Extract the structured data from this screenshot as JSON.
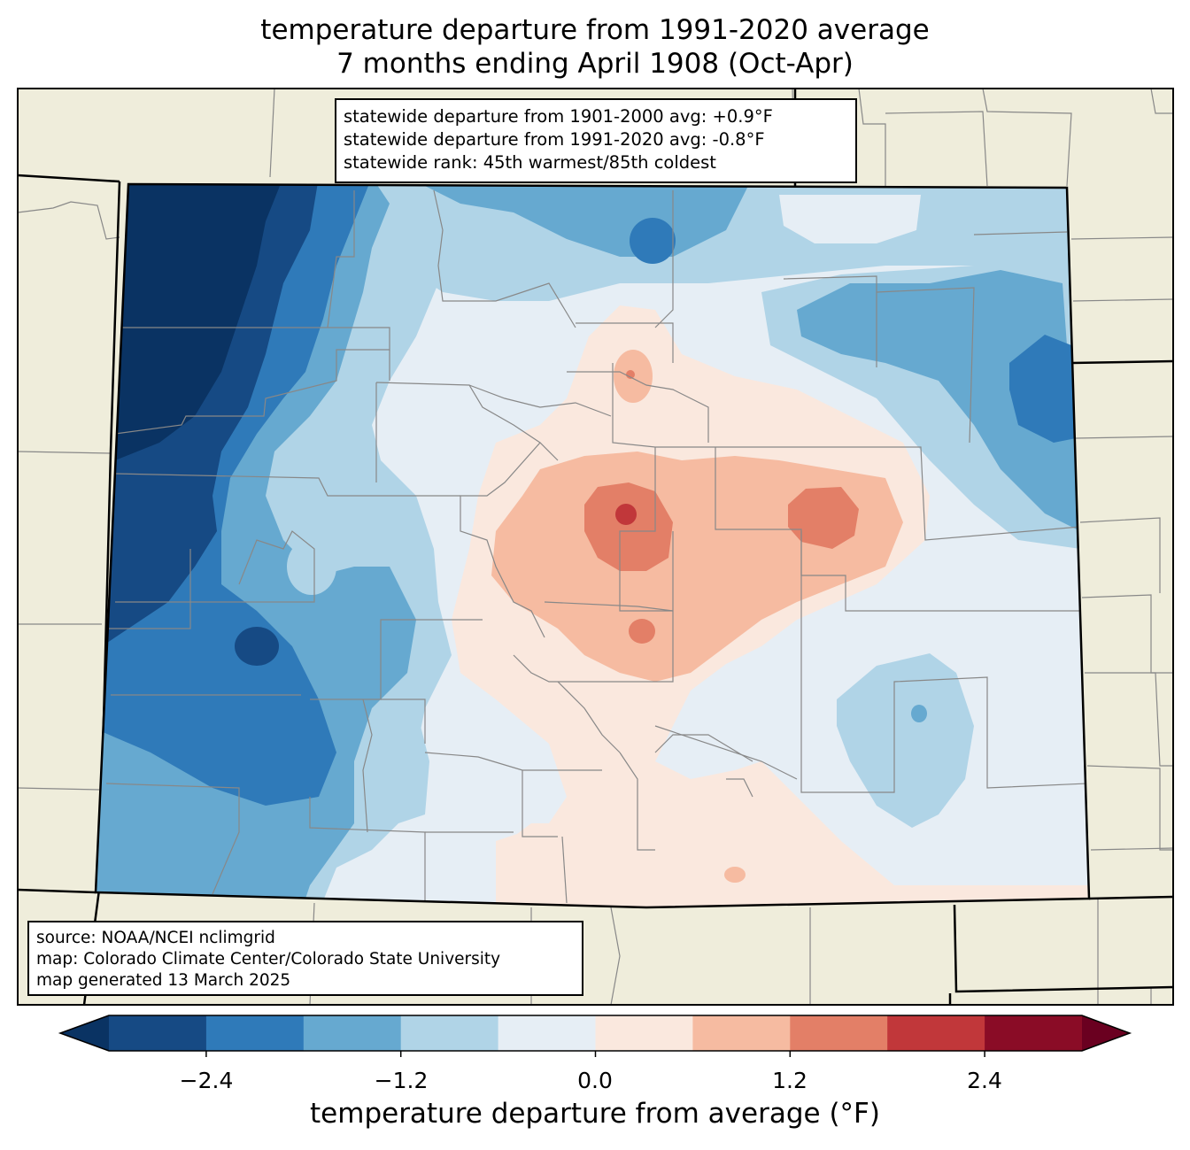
{
  "title": {
    "line1": "temperature departure from 1991-2020 average",
    "line2": "7 months ending April 1908 (Oct-Apr)"
  },
  "stats": {
    "line1": "statewide departure from 1901-2000 avg: +0.9°F",
    "line2": "statewide departure from 1991-2020 avg: -0.8°F",
    "line3": "statewide rank: 45th warmest/85th coldest"
  },
  "source": {
    "line1": "source: NOAA/NCEI nclimgrid",
    "line2": "map: Colorado Climate Center/Colorado State University",
    "line3": "map generated 13 March 2025"
  },
  "colorbar": {
    "label": "temperature departure from average (°F)",
    "ticks": [
      "−2.4",
      "−1.2",
      "0.0",
      "1.2",
      "2.4"
    ],
    "bins": [
      {
        "from": -3.0,
        "to": -2.4,
        "color": "#164a84"
      },
      {
        "from": -2.4,
        "to": -1.8,
        "color": "#2f7ab9"
      },
      {
        "from": -1.8,
        "to": -1.2,
        "color": "#66a9d0"
      },
      {
        "from": -1.2,
        "to": -0.6,
        "color": "#b0d4e7"
      },
      {
        "from": -0.6,
        "to": 0.0,
        "color": "#e6eef5"
      },
      {
        "from": 0.0,
        "to": 0.6,
        "color": "#fae8de"
      },
      {
        "from": 0.6,
        "to": 1.2,
        "color": "#f6bba1"
      },
      {
        "from": 1.2,
        "to": 1.8,
        "color": "#e37f67"
      },
      {
        "from": 1.8,
        "to": 2.4,
        "color": "#c1373a"
      },
      {
        "from": 2.4,
        "to": 3.0,
        "color": "#8a0c26"
      }
    ],
    "under_color": "#0a3363",
    "over_color": "#6a0020"
  },
  "colors": {
    "land": "#efeddb",
    "county_line": "#888888",
    "state_line": "#000000"
  }
}
